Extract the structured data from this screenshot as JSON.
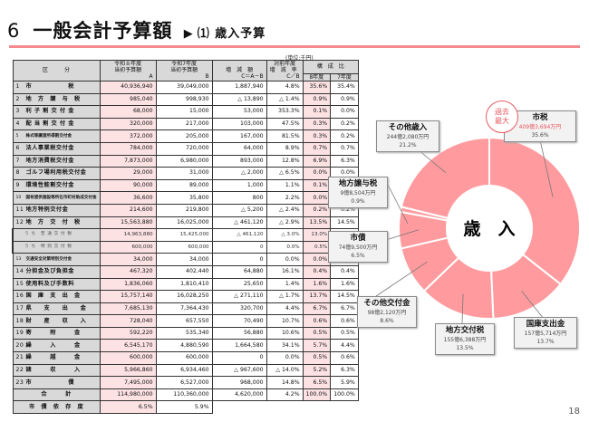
{
  "header": {
    "section_number": "6",
    "title": "一般会計予算額",
    "arrow": "▶",
    "subtitle": "⑴ 歳入予算",
    "unit": "(単位:千円)"
  },
  "table": {
    "headers": {
      "category": "区　　　分",
      "r8_line1": "令和８年度",
      "r8_line2": "当初予算額",
      "r8_key": "A",
      "r7_line1": "令和7年度",
      "r7_line2": "当初予算額",
      "r7_key": "B",
      "diff_line1": "増　減　額",
      "diff_key": "C＝A－B",
      "rate_line1": "対前年度",
      "rate_line2": "増　減　率",
      "rate_key": "C／B",
      "comp": "構　成　比",
      "comp_r8": "8年度",
      "comp_r7": "7年度"
    },
    "rows": [
      {
        "no": "1",
        "label": "市　　　　　　税",
        "a": "40,936,940",
        "b": "39,049,000",
        "c": "1,887,940",
        "rate": "4.8%",
        "c8": "35.6%",
        "c7": "35.4%"
      },
      {
        "no": "2",
        "label": "地　方　譲　与　税",
        "a": "985,040",
        "b": "998,930",
        "c": "△ 13,890",
        "rate": "△ 1.4%",
        "c8": "0.9%",
        "c7": "0.9%"
      },
      {
        "no": "3",
        "label": "利 子 割 交 付 金",
        "a": "68,000",
        "b": "15,000",
        "c": "53,000",
        "rate": "353.3%",
        "c8": "0.1%",
        "c7": "0.0%"
      },
      {
        "no": "4",
        "label": "配 当 割 交 付 金",
        "a": "320,000",
        "b": "217,000",
        "c": "103,000",
        "rate": "47.5%",
        "c8": "0.3%",
        "c7": "0.2%"
      },
      {
        "no": "5",
        "label": "株式等譲渡所得割交付金",
        "a": "372,000",
        "b": "205,000",
        "c": "167,000",
        "rate": "81.5%",
        "c8": "0.3%",
        "c7": "0.2%",
        "small": true
      },
      {
        "no": "6",
        "label": "法人事業税交付金",
        "a": "784,000",
        "b": "720,000",
        "c": "64,000",
        "rate": "8.9%",
        "c8": "0.7%",
        "c7": "0.7%"
      },
      {
        "no": "7",
        "label": "地方消費税交付金",
        "a": "7,873,000",
        "b": "6,980,000",
        "c": "893,000",
        "rate": "12.8%",
        "c8": "6.9%",
        "c7": "6.3%"
      },
      {
        "no": "8",
        "label": "ゴルフ場利用税交付金",
        "a": "29,000",
        "b": "31,000",
        "c": "△ 2,000",
        "rate": "△ 6.5%",
        "c8": "0.0%",
        "c7": "0.0%"
      },
      {
        "no": "9",
        "label": "環境性能割交付金",
        "a": "90,000",
        "b": "89,000",
        "c": "1,000",
        "rate": "1.1%",
        "c8": "0.1%",
        "c7": "0.1%"
      },
      {
        "no": "10",
        "label": "国有提供施設等所在市町村助成交付金",
        "a": "36,600",
        "b": "35,800",
        "c": "800",
        "rate": "2.2%",
        "c8": "0.0%",
        "c7": "0.0%",
        "small": true
      },
      {
        "no": "11",
        "label": "地方特例交付金",
        "a": "214,600",
        "b": "219,800",
        "c": "△ 5,200",
        "rate": "△ 2.4%",
        "c8": "0.2%",
        "c7": "0.2%"
      },
      {
        "no": "12",
        "label": "地　方　交　付　税",
        "a": "15,563,880",
        "b": "16,025,000",
        "c": "△ 461,120",
        "rate": "△ 2.9%",
        "c8": "13.5%",
        "c7": "14.5%"
      },
      {
        "no": "",
        "label": "う ち　普 通 交 付 税",
        "a": "14,963,880",
        "b": "15,425,000",
        "c": "△ 461,120",
        "rate": "△ 3.0%",
        "c8": "13.0%",
        "c7": "14.0%",
        "sub": true
      },
      {
        "no": "",
        "label": "う ち　特 別 交 付 税",
        "a": "600,000",
        "b": "600,000",
        "c": "0",
        "rate": "0.0%",
        "c8": "0.5%",
        "c7": "0.5%",
        "sub": true
      },
      {
        "no": "13",
        "label": "交通安全対策特別交付金",
        "a": "34,000",
        "b": "34,000",
        "c": "0",
        "rate": "0.0%",
        "c8": "0.0%",
        "c7": "0.0%",
        "small": true
      },
      {
        "no": "14",
        "label": "分担金及び負担金",
        "a": "467,320",
        "b": "402,440",
        "c": "64,880",
        "rate": "16.1%",
        "c8": "0.4%",
        "c7": "0.4%"
      },
      {
        "no": "15",
        "label": "使用料及び手数料",
        "a": "1,836,060",
        "b": "1,810,410",
        "c": "25,650",
        "rate": "1.4%",
        "c8": "1.6%",
        "c7": "1.6%"
      },
      {
        "no": "16",
        "label": "国　庫　支　出　金",
        "a": "15,757,140",
        "b": "16,028,250",
        "c": "△ 271,110",
        "rate": "△ 1.7%",
        "c8": "13.7%",
        "c7": "14.5%"
      },
      {
        "no": "17",
        "label": "県　　支　　出　　金",
        "a": "7,685,130",
        "b": "7,364,430",
        "c": "320,700",
        "rate": "4.4%",
        "c8": "6.7%",
        "c7": "6.7%"
      },
      {
        "no": "18",
        "label": "財　　産　　収　　入",
        "a": "728,040",
        "b": "657,550",
        "c": "70,490",
        "rate": "10.7%",
        "c8": "0.6%",
        "c7": "0.6%"
      },
      {
        "no": "19",
        "label": "寄　　　附　　　金",
        "a": "592,220",
        "b": "535,340",
        "c": "56,880",
        "rate": "10.6%",
        "c8": "0.5%",
        "c7": "0.5%"
      },
      {
        "no": "20",
        "label": "繰　　　入　　　金",
        "a": "6,545,170",
        "b": "4,880,590",
        "c": "1,664,580",
        "rate": "34.1%",
        "c8": "5.7%",
        "c7": "4.4%"
      },
      {
        "no": "21",
        "label": "繰　　　越　　　金",
        "a": "600,000",
        "b": "600,000",
        "c": "0",
        "rate": "0.0%",
        "c8": "0.5%",
        "c7": "0.6%"
      },
      {
        "no": "22",
        "label": "諸　　　収　　　入",
        "a": "5,966,860",
        "b": "6,934,460",
        "c": "△ 967,600",
        "rate": "△ 14.0%",
        "c8": "5.2%",
        "c7": "6.3%"
      },
      {
        "no": "23",
        "label": "市　　　　　　債",
        "a": "7,495,000",
        "b": "6,527,000",
        "c": "968,000",
        "rate": "14.8%",
        "c8": "6.5%",
        "c7": "5.9%"
      }
    ],
    "total": {
      "label": "合　　　計",
      "a": "114,980,000",
      "b": "110,360,000",
      "c": "4,620,000",
      "rate": "4.2%",
      "c8": "100.0%",
      "c7": "100.0%"
    },
    "dependency": {
      "label": "市　債　依　存　度",
      "a": "6.5%",
      "b": "5.9%"
    }
  },
  "chart_data": {
    "type": "pie",
    "title": "歳　入",
    "center_label": "歳　入",
    "donut": true,
    "start_angle": "12 o'clock, clockwise",
    "color": "#ff9b9e",
    "categories": [
      "市税",
      "国庫支出金",
      "地方交付税",
      "その他交付金",
      "市債",
      "地方譲与税",
      "その他歳入"
    ],
    "values": [
      35.6,
      13.7,
      13.5,
      8.6,
      6.5,
      0.9,
      21.2
    ],
    "amounts": [
      "409億3,694万円",
      "157億5,714万円",
      "155億6,388万円",
      "98億2,120万円",
      "74億9,500万円",
      "9億8,504万円",
      "244億2,080万円"
    ],
    "annotations": [
      {
        "target": "市税",
        "text": "過去最大"
      }
    ]
  },
  "callouts": [
    {
      "name": "市税",
      "amount": "409億3,694万円",
      "pct": "35.6%"
    },
    {
      "name": "国庫支出金",
      "amount": "157億5,714万円",
      "pct": "13.7%"
    },
    {
      "name": "地方交付税",
      "amount": "155億6,388万円",
      "pct": "13.5%"
    },
    {
      "name": "その他交付金",
      "amount": "98億2,120万円",
      "pct": "8.6%"
    },
    {
      "name": "市債",
      "amount": "74億9,500万円",
      "pct": "6.5%"
    },
    {
      "name": "地方譲与税",
      "amount": "9億8,504万円",
      "pct": "0.9%"
    },
    {
      "name": "その他歳入",
      "amount": "244億2,080万円",
      "pct": "21.2%"
    }
  ],
  "badge": {
    "line1": "過去",
    "line2": "最大"
  },
  "page_number": "18"
}
